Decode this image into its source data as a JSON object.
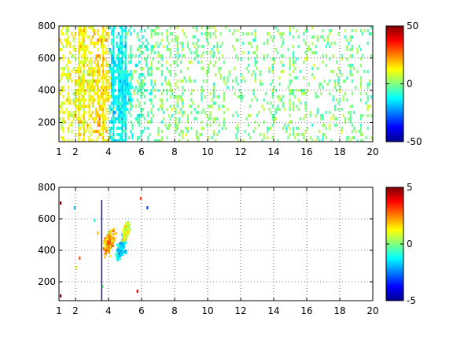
{
  "chart_data": [
    {
      "type": "heatmap",
      "xlim": [
        1,
        20
      ],
      "ylim": [
        80,
        800
      ],
      "x_ticks": [
        1,
        2,
        4,
        6,
        8,
        10,
        12,
        14,
        16,
        18,
        20
      ],
      "y_ticks": [
        200,
        400,
        600,
        800
      ],
      "x_tick_labels": [
        "1",
        "2",
        "4",
        "6",
        "8",
        "10",
        "12",
        "14",
        "16",
        "18",
        "20"
      ],
      "y_tick_labels": [
        "200",
        "400",
        "600",
        "800"
      ],
      "grid": "dotted",
      "colorbar": {
        "colormap": "jet",
        "min": -50,
        "max": 50,
        "ticks": [
          -50,
          0,
          50
        ],
        "tick_labels": [
          "-50",
          "0",
          "50"
        ]
      },
      "density": [
        {
          "x": 1.3,
          "y": 450,
          "value": 10,
          "density": 0.55
        },
        {
          "x": 2.5,
          "y": 450,
          "value": 12,
          "density": 0.7
        },
        {
          "x": 3.5,
          "y": 450,
          "value": 15,
          "density": 0.85
        },
        {
          "x": 4.5,
          "y": 450,
          "value": -12,
          "density": 0.85
        },
        {
          "x": 5.5,
          "y": 450,
          "value": -5,
          "density": 0.35
        },
        {
          "x": 7.5,
          "y": 450,
          "value": 0,
          "density": 0.22
        },
        {
          "x": 10.0,
          "y": 450,
          "value": 0,
          "density": 0.2
        },
        {
          "x": 12.5,
          "y": 450,
          "value": 0,
          "density": 0.18
        },
        {
          "x": 15.0,
          "y": 450,
          "value": 0,
          "density": 0.2
        },
        {
          "x": 17.5,
          "y": 450,
          "value": 0,
          "density": 0.18
        }
      ]
    },
    {
      "type": "heatmap",
      "xlim": [
        1,
        20
      ],
      "ylim": [
        80,
        800
      ],
      "x_ticks": [
        1,
        2,
        4,
        6,
        8,
        10,
        12,
        14,
        16,
        18,
        20
      ],
      "y_ticks": [
        200,
        400,
        600,
        800
      ],
      "x_tick_labels": [
        "1",
        "2",
        "4",
        "6",
        "8",
        "10",
        "12",
        "14",
        "16",
        "18",
        "20"
      ],
      "y_tick_labels": [
        "200",
        "400",
        "600",
        "800"
      ],
      "grid": "dotted",
      "colorbar": {
        "colormap": "jet",
        "min": -5,
        "max": 5,
        "ticks": [
          -5,
          0,
          5
        ],
        "tick_labels": [
          "-5",
          "0",
          "5"
        ]
      },
      "clusters": [
        {
          "x": 4.0,
          "y": 460,
          "value": 2,
          "x_spread": 0.5,
          "y_spread": 110
        },
        {
          "x": 4.7,
          "y": 420,
          "value": -1.5,
          "x_spread": 0.45,
          "y_spread": 90
        },
        {
          "x": 5.0,
          "y": 530,
          "value": 1,
          "x_spread": 0.3,
          "y_spread": 80
        }
      ]
    }
  ]
}
